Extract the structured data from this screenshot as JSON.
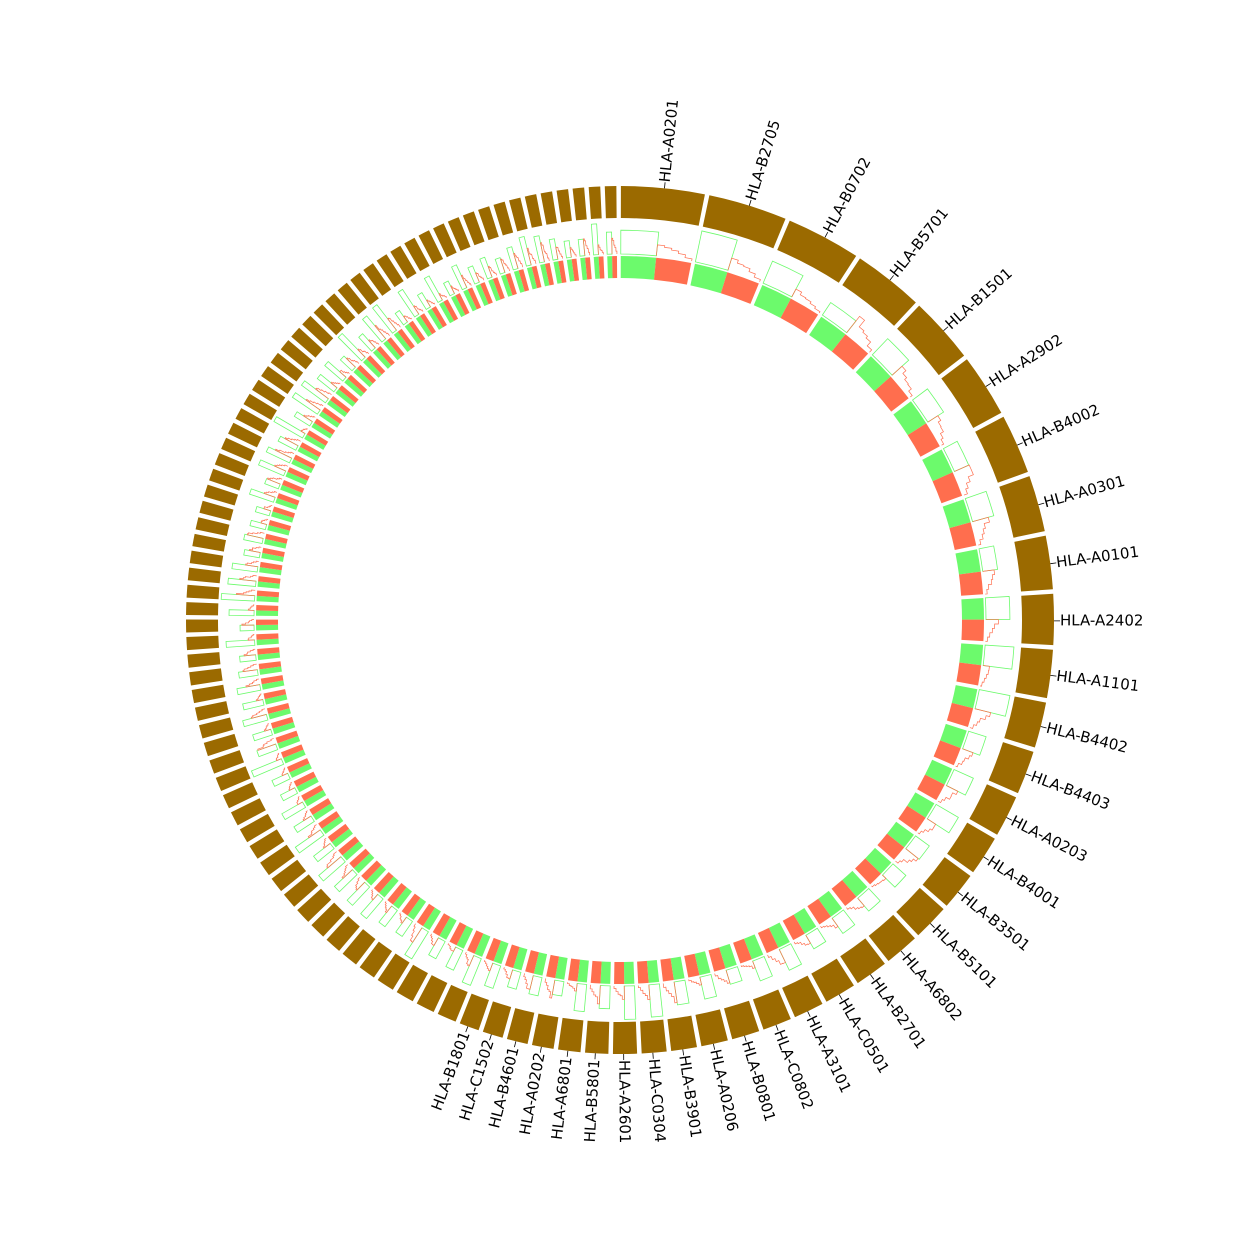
{
  "chart_data": {
    "type": "circular-bar",
    "colors": {
      "outer_track": "#9b6a00",
      "green_series": "#6cfa6c",
      "red_series": "#ff6e4e"
    },
    "labels": [
      "HLA-A0201",
      "HLA-B2705",
      "HLA-B0702",
      "HLA-B5701",
      "HLA-B1501",
      "HLA-A2902",
      "HLA-B4002",
      "HLA-A0301",
      "HLA-A0101",
      "HLA-A2402",
      "HLA-A1101",
      "HLA-B4402",
      "HLA-B4403",
      "HLA-A0203",
      "HLA-B4001",
      "HLA-B3501",
      "HLA-B5101",
      "HLA-A6802",
      "HLA-B2701",
      "HLA-C0501",
      "HLA-A3101",
      "HLA-C0802",
      "HLA-B0801",
      "HLA-A0206",
      "HLA-B3901",
      "HLA-C0304",
      "HLA-A2601",
      "HLA-B5801",
      "HLA-A6801",
      "HLA-A0202",
      "HLA-B4601",
      "HLA-C1502",
      "HLA-B1801"
    ]
  }
}
